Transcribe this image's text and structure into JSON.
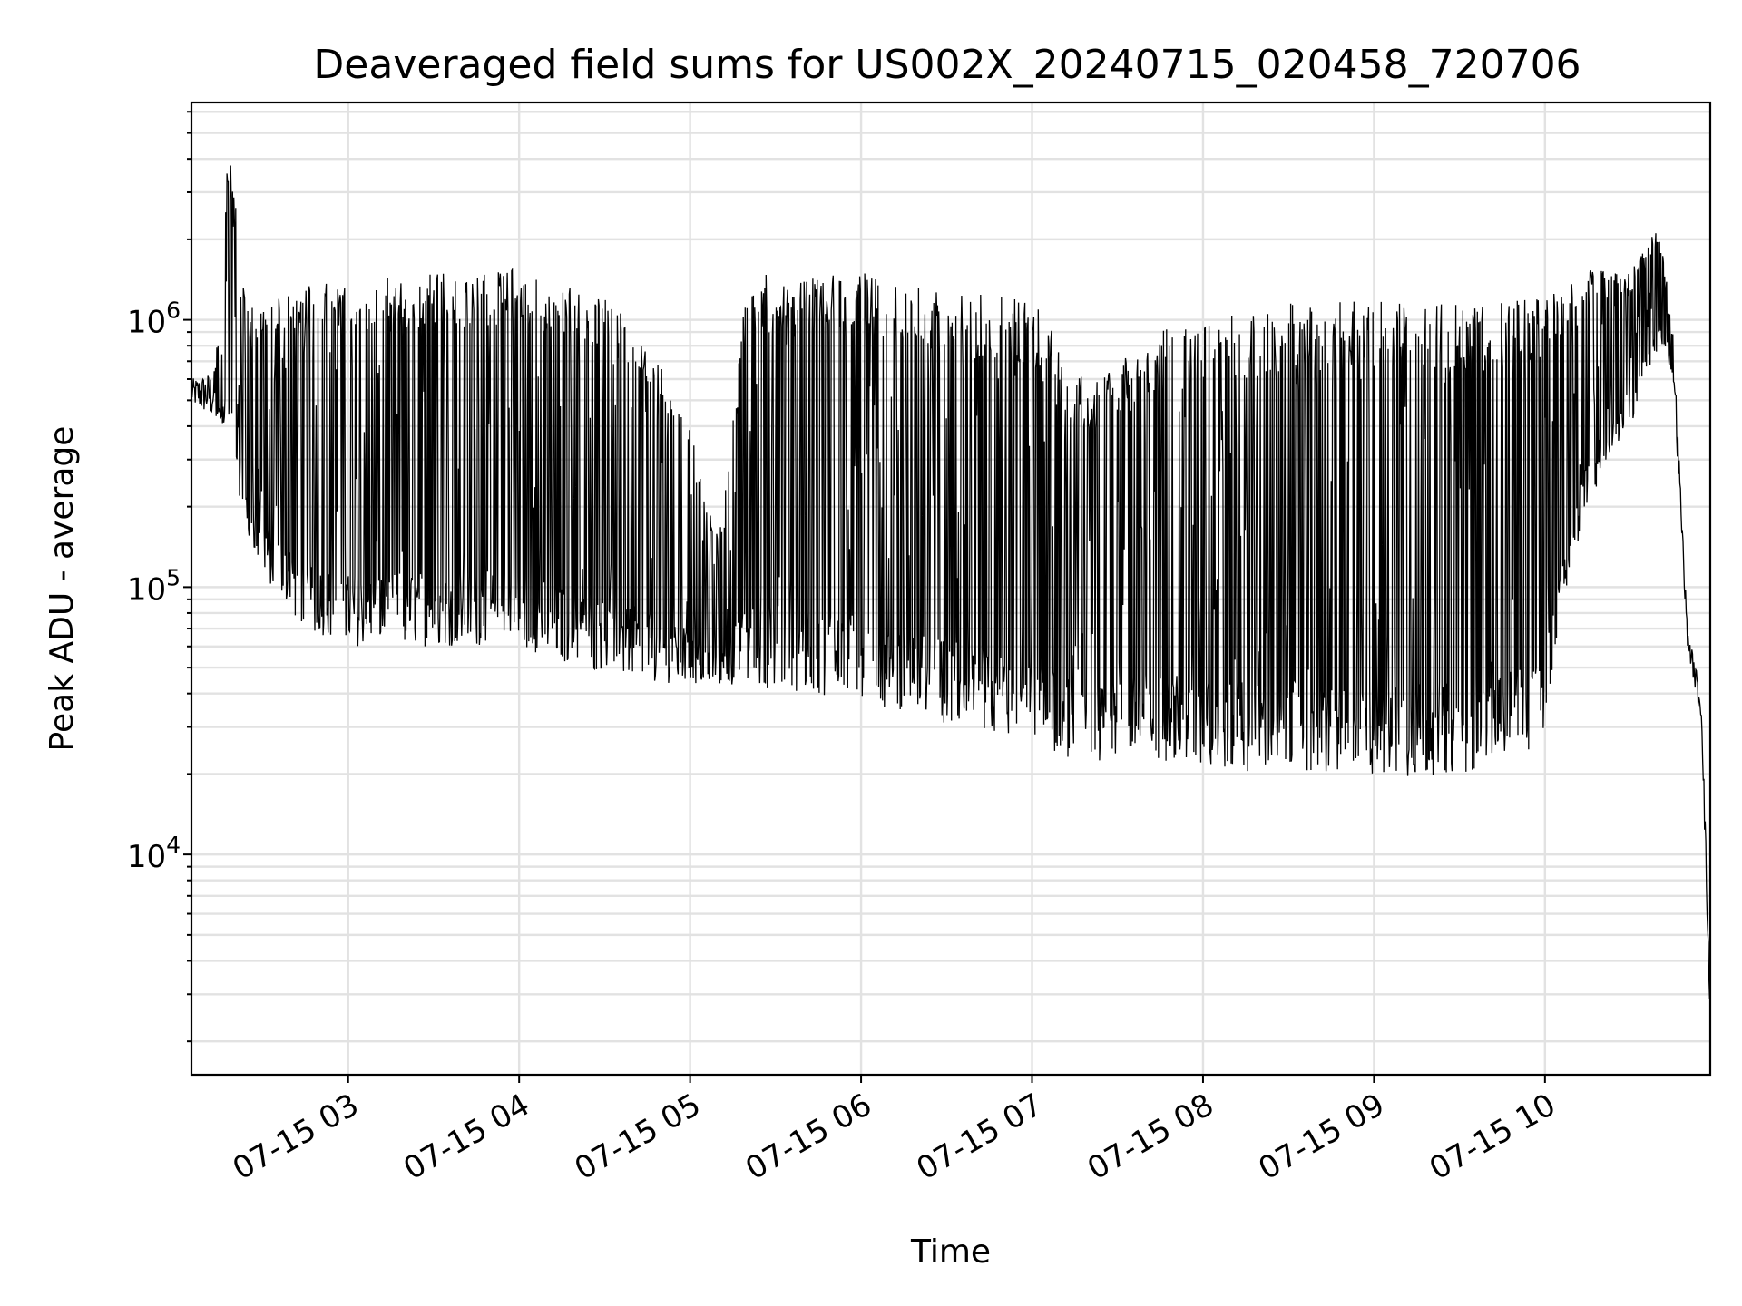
{
  "chart_data": {
    "type": "line",
    "title": "Deaveraged field sums for US002X_20240715_020458_720706",
    "xlabel": "Time",
    "ylabel": "Peak ADU - average",
    "yscale": "log",
    "xlim": [
      "2024-07-15 02:05",
      "2024-07-15 10:58"
    ],
    "ylim": [
      1500,
      6500000
    ],
    "grid": true,
    "x_ticks": [
      {
        "label": "07-15 03",
        "value": "2024-07-15 03:00"
      },
      {
        "label": "07-15 04",
        "value": "2024-07-15 04:00"
      },
      {
        "label": "07-15 05",
        "value": "2024-07-15 05:00"
      },
      {
        "label": "07-15 06",
        "value": "2024-07-15 06:00"
      },
      {
        "label": "07-15 07",
        "value": "2024-07-15 07:00"
      },
      {
        "label": "07-15 08",
        "value": "2024-07-15 08:00"
      },
      {
        "label": "07-15 09",
        "value": "2024-07-15 09:00"
      },
      {
        "label": "07-15 10",
        "value": "2024-07-15 10:00"
      }
    ],
    "y_ticks": [
      {
        "base": "10",
        "exp": "4",
        "value": 10000
      },
      {
        "base": "10",
        "exp": "5",
        "value": 100000
      },
      {
        "base": "10",
        "exp": "6",
        "value": 1000000
      }
    ],
    "series": [
      {
        "color": "#000000",
        "envelope": [
          {
            "t": "2024-07-15 02:05",
            "low": 480000,
            "high": 600000
          },
          {
            "t": "2024-07-15 02:13",
            "low": 420000,
            "high": 650000
          },
          {
            "t": "2024-07-15 02:18",
            "low": 350000,
            "high": 4400000
          },
          {
            "t": "2024-07-15 02:25",
            "low": 150000,
            "high": 1150000
          },
          {
            "t": "2024-07-15 02:35",
            "low": 90000,
            "high": 1200000
          },
          {
            "t": "2024-07-15 02:45",
            "low": 70000,
            "high": 1350000
          },
          {
            "t": "2024-07-15 03:00",
            "low": 60000,
            "high": 1400000
          },
          {
            "t": "2024-07-15 03:30",
            "low": 60000,
            "high": 1500000
          },
          {
            "t": "2024-07-15 04:00",
            "low": 60000,
            "high": 1550000
          },
          {
            "t": "2024-07-15 04:20",
            "low": 50000,
            "high": 1300000
          },
          {
            "t": "2024-07-15 04:40",
            "low": 45000,
            "high": 1100000
          },
          {
            "t": "2024-07-15 05:00",
            "low": 43000,
            "high": 400000
          },
          {
            "t": "2024-07-15 05:10",
            "low": 43000,
            "high": 150000
          },
          {
            "t": "2024-07-15 05:20",
            "low": 42000,
            "high": 1500000
          },
          {
            "t": "2024-07-15 05:40",
            "low": 40000,
            "high": 1450000
          },
          {
            "t": "2024-07-15 06:00",
            "low": 38000,
            "high": 1500000
          },
          {
            "t": "2024-07-15 06:30",
            "low": 30000,
            "high": 1300000
          },
          {
            "t": "2024-07-15 07:00",
            "low": 25000,
            "high": 1200000
          },
          {
            "t": "2024-07-15 07:20",
            "low": 22000,
            "high": 550000
          },
          {
            "t": "2024-07-15 07:40",
            "low": 23000,
            "high": 900000
          },
          {
            "t": "2024-07-15 08:00",
            "low": 21000,
            "high": 1000000
          },
          {
            "t": "2024-07-15 08:30",
            "low": 20000,
            "high": 1150000
          },
          {
            "t": "2024-07-15 09:00",
            "low": 19000,
            "high": 1200000
          },
          {
            "t": "2024-07-15 09:30",
            "low": 20000,
            "high": 1150000
          },
          {
            "t": "2024-07-15 10:00",
            "low": 25000,
            "high": 1200000
          },
          {
            "t": "2024-07-15 10:05",
            "low": 80000,
            "high": 1300000
          },
          {
            "t": "2024-07-15 10:15",
            "low": 200000,
            "high": 1550000
          },
          {
            "t": "2024-07-15 10:30",
            "low": 400000,
            "high": 1500000
          },
          {
            "t": "2024-07-15 10:40",
            "low": 800000,
            "high": 2300000
          },
          {
            "t": "2024-07-15 10:45",
            "low": 600000,
            "high": 900000
          },
          {
            "t": "2024-07-15 10:50",
            "low": 60000,
            "high": 70000
          },
          {
            "t": "2024-07-15 10:55",
            "low": 30000,
            "high": 40000
          },
          {
            "t": "2024-07-15 10:58",
            "low": 2000,
            "high": 3000
          }
        ]
      }
    ]
  }
}
